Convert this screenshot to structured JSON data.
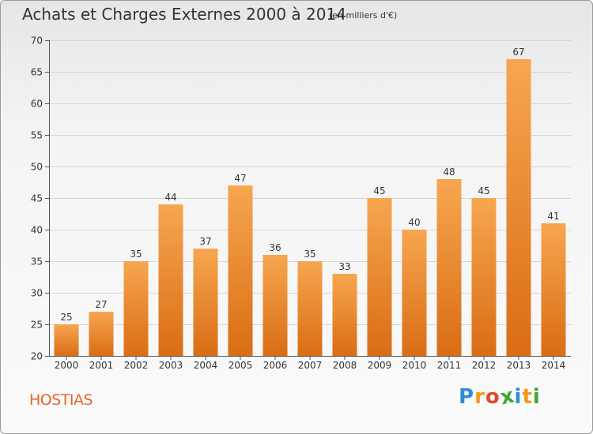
{
  "title": "Achats et Charges Externes 2000 à 2014",
  "subtitle": "(en milliers d'€)",
  "commune": "HOSTIAS",
  "logo": {
    "letters": [
      "P",
      "r",
      "o",
      "x",
      "i",
      "t",
      "i"
    ],
    "colors": [
      "#2b8fd6",
      "#f29a18",
      "#e04a2a",
      "#3fa535",
      "#2b8fd6",
      "#f29a18",
      "#3fa535"
    ]
  },
  "chart_data": {
    "type": "bar",
    "categories": [
      "2000",
      "2001",
      "2002",
      "2003",
      "2004",
      "2005",
      "2006",
      "2007",
      "2008",
      "2009",
      "2010",
      "2011",
      "2012",
      "2013",
      "2014"
    ],
    "values": [
      25,
      27,
      35,
      44,
      37,
      47,
      36,
      35,
      33,
      45,
      40,
      48,
      45,
      67,
      41
    ],
    "ylim": [
      20,
      70
    ],
    "yticks": [
      20,
      25,
      30,
      35,
      40,
      45,
      50,
      55,
      60,
      65,
      70
    ],
    "bar_color_top": "#f7a650",
    "bar_color_bottom": "#d96d14",
    "grid": true,
    "show_data_labels": true
  }
}
